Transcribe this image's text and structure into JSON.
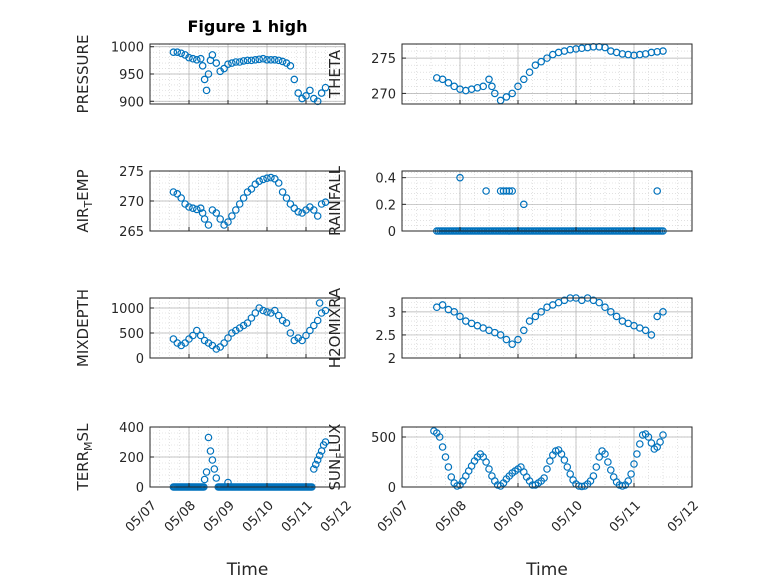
{
  "figure": {
    "title": "Figure 1 high",
    "xlabel": "Time",
    "colors": {
      "marker": "#0072BD",
      "axis": "#262626",
      "grid": "#cfcfcf",
      "background": "#ffffff"
    }
  },
  "chart_data": [
    {
      "id": "pressure",
      "type": "scatter",
      "ylabel": "PRESSURE",
      "ylim": [
        895,
        1005
      ],
      "yticks": [
        900,
        950,
        1000
      ],
      "xlim": [
        "05/07",
        "05/12"
      ],
      "xticks": [
        "05/07",
        "05/08",
        "05/09",
        "05/10",
        "05/11",
        "05/12"
      ],
      "grid": "major+minor",
      "marker": "open-circle",
      "x": [
        7.6,
        7.7,
        7.8,
        7.9,
        8.0,
        8.1,
        8.2,
        8.3,
        8.35,
        8.4,
        8.45,
        8.5,
        8.55,
        8.6,
        8.7,
        8.8,
        8.9,
        9.0,
        9.1,
        9.2,
        9.3,
        9.4,
        9.5,
        9.6,
        9.7,
        9.8,
        9.9,
        10.0,
        10.1,
        10.2,
        10.3,
        10.4,
        10.5,
        10.6,
        10.7,
        10.8,
        10.9,
        11.0,
        11.1,
        11.2,
        11.3,
        11.4,
        11.5
      ],
      "y": [
        990,
        990,
        988,
        985,
        980,
        978,
        976,
        978,
        965,
        940,
        920,
        950,
        975,
        985,
        970,
        955,
        960,
        968,
        970,
        972,
        972,
        974,
        975,
        975,
        976,
        977,
        978,
        976,
        976,
        976,
        975,
        973,
        970,
        965,
        940,
        915,
        905,
        910,
        920,
        905,
        900,
        915,
        925
      ]
    },
    {
      "id": "theta",
      "type": "scatter",
      "ylabel": "THETA",
      "ylim": [
        268.5,
        277
      ],
      "yticks": [
        270,
        275
      ],
      "xlim": [
        "05/07",
        "05/12"
      ],
      "xticks": [
        "05/07",
        "05/08",
        "05/09",
        "05/10",
        "05/11",
        "05/12"
      ],
      "grid": "major+minor",
      "marker": "open-circle",
      "x": [
        7.6,
        7.7,
        7.8,
        7.9,
        8.0,
        8.1,
        8.2,
        8.3,
        8.4,
        8.5,
        8.55,
        8.6,
        8.7,
        8.8,
        8.9,
        9.0,
        9.1,
        9.2,
        9.3,
        9.4,
        9.5,
        9.6,
        9.7,
        9.8,
        9.9,
        10.0,
        10.1,
        10.2,
        10.3,
        10.4,
        10.5,
        10.6,
        10.7,
        10.8,
        10.9,
        11.0,
        11.1,
        11.2,
        11.3,
        11.4,
        11.5
      ],
      "y": [
        272.2,
        272.0,
        271.5,
        271.0,
        270.6,
        270.4,
        270.6,
        270.8,
        271.0,
        272.0,
        271.0,
        270.0,
        269.0,
        269.5,
        270.0,
        271.0,
        272.0,
        273.0,
        274.0,
        274.5,
        275.0,
        275.5,
        275.8,
        276.0,
        276.2,
        276.3,
        276.4,
        276.5,
        276.6,
        276.6,
        276.5,
        276.0,
        275.8,
        275.6,
        275.5,
        275.4,
        275.5,
        275.6,
        275.8,
        275.9,
        276.0
      ]
    },
    {
      "id": "air_temp",
      "type": "scatter",
      "ylabel": "AIR_TEMP",
      "ylim": [
        265,
        275
      ],
      "yticks": [
        265,
        270,
        275
      ],
      "xlim": [
        "05/07",
        "05/12"
      ],
      "xticks": [
        "05/07",
        "05/08",
        "05/09",
        "05/10",
        "05/11",
        "05/12"
      ],
      "grid": "major+minor",
      "marker": "open-circle",
      "x": [
        7.6,
        7.7,
        7.8,
        7.9,
        8.0,
        8.1,
        8.2,
        8.3,
        8.35,
        8.4,
        8.5,
        8.6,
        8.7,
        8.8,
        8.9,
        9.0,
        9.1,
        9.2,
        9.3,
        9.4,
        9.5,
        9.6,
        9.7,
        9.8,
        9.9,
        10.0,
        10.1,
        10.2,
        10.3,
        10.4,
        10.5,
        10.6,
        10.7,
        10.8,
        10.9,
        11.0,
        11.1,
        11.2,
        11.3,
        11.4,
        11.5
      ],
      "y": [
        271.5,
        271.2,
        270.5,
        269.5,
        269.0,
        268.8,
        268.6,
        268.8,
        268.0,
        267.0,
        266.0,
        268.5,
        268.0,
        267.0,
        266.0,
        266.5,
        267.5,
        268.5,
        269.5,
        270.5,
        271.5,
        272.0,
        272.8,
        273.3,
        273.6,
        273.8,
        273.9,
        273.7,
        273.0,
        271.5,
        270.5,
        269.5,
        268.8,
        268.2,
        268.0,
        268.5,
        269.0,
        268.5,
        267.5,
        269.5,
        269.8
      ]
    },
    {
      "id": "rainfall",
      "type": "scatter",
      "ylabel": "RAINFALL",
      "ylim": [
        0,
        0.45
      ],
      "yticks": [
        0,
        0.2,
        0.4
      ],
      "xlim": [
        "05/07",
        "05/12"
      ],
      "xticks": [
        "05/07",
        "05/08",
        "05/09",
        "05/10",
        "05/11",
        "05/12"
      ],
      "grid": "major+minor",
      "marker": "open-circle",
      "x": [
        8.0,
        8.45,
        8.7,
        8.75,
        8.8,
        8.85,
        8.9,
        9.1,
        11.4
      ],
      "y": [
        0.4,
        0.3,
        0.3,
        0.3,
        0.3,
        0.3,
        0.3,
        0.2,
        0.3
      ],
      "zero_run": [
        7.6,
        11.5
      ]
    },
    {
      "id": "mixdepth",
      "type": "scatter",
      "ylabel": "MIXDEPTH",
      "ylim": [
        0,
        1200
      ],
      "yticks": [
        0,
        500,
        1000
      ],
      "xlim": [
        "05/07",
        "05/12"
      ],
      "xticks": [
        "05/07",
        "05/08",
        "05/09",
        "05/10",
        "05/11",
        "05/12"
      ],
      "grid": "major+minor",
      "marker": "open-circle",
      "x": [
        7.6,
        7.7,
        7.8,
        7.9,
        8.0,
        8.1,
        8.2,
        8.3,
        8.4,
        8.5,
        8.6,
        8.7,
        8.8,
        8.9,
        9.0,
        9.1,
        9.2,
        9.3,
        9.4,
        9.5,
        9.6,
        9.7,
        9.8,
        9.9,
        10.0,
        10.1,
        10.2,
        10.3,
        10.4,
        10.5,
        10.6,
        10.7,
        10.8,
        10.9,
        11.0,
        11.1,
        11.2,
        11.3,
        11.35,
        11.4,
        11.5
      ],
      "y": [
        380,
        300,
        250,
        300,
        380,
        450,
        550,
        450,
        350,
        300,
        250,
        180,
        220,
        300,
        400,
        500,
        550,
        600,
        650,
        700,
        800,
        900,
        1000,
        950,
        920,
        900,
        950,
        850,
        750,
        700,
        500,
        350,
        400,
        350,
        450,
        550,
        650,
        750,
        1100,
        900,
        950
      ]
    },
    {
      "id": "h2omixra",
      "type": "scatter",
      "ylabel": "H2OMIXRA",
      "ylim": [
        2,
        3.3
      ],
      "yticks": [
        2,
        2.5,
        3
      ],
      "xlim": [
        "05/07",
        "05/12"
      ],
      "xticks": [
        "05/07",
        "05/08",
        "05/09",
        "05/10",
        "05/11",
        "05/12"
      ],
      "grid": "major+minor",
      "marker": "open-circle",
      "x": [
        7.6,
        7.7,
        7.8,
        7.9,
        8.0,
        8.1,
        8.2,
        8.3,
        8.4,
        8.5,
        8.6,
        8.7,
        8.8,
        8.9,
        9.0,
        9.1,
        9.2,
        9.3,
        9.4,
        9.5,
        9.6,
        9.7,
        9.8,
        9.9,
        10.0,
        10.1,
        10.2,
        10.3,
        10.4,
        10.5,
        10.6,
        10.7,
        10.8,
        10.9,
        11.0,
        11.1,
        11.2,
        11.3,
        11.4,
        11.5
      ],
      "y": [
        3.1,
        3.15,
        3.05,
        3.0,
        2.9,
        2.8,
        2.75,
        2.7,
        2.65,
        2.6,
        2.55,
        2.5,
        2.4,
        2.3,
        2.4,
        2.6,
        2.8,
        2.9,
        3.0,
        3.1,
        3.15,
        3.2,
        3.25,
        3.3,
        3.3,
        3.25,
        3.3,
        3.25,
        3.2,
        3.1,
        3.0,
        2.9,
        2.8,
        2.75,
        2.7,
        2.65,
        2.6,
        2.5,
        2.9,
        3.0
      ]
    },
    {
      "id": "terr_msl",
      "type": "scatter",
      "ylabel": "TERR_MSL",
      "ylim": [
        0,
        400
      ],
      "yticks": [
        0,
        200,
        400
      ],
      "xlim": [
        "05/07",
        "05/12"
      ],
      "xticks": [
        "05/07",
        "05/08",
        "05/09",
        "05/10",
        "05/11",
        "05/12"
      ],
      "grid": "major+minor",
      "marker": "open-circle",
      "x": [
        8.4,
        8.45,
        8.5,
        8.55,
        8.6,
        8.65,
        8.7,
        9.0,
        11.2,
        11.25,
        11.3,
        11.35,
        11.4,
        11.45,
        11.5
      ],
      "y": [
        50,
        100,
        330,
        240,
        180,
        120,
        60,
        30,
        120,
        150,
        180,
        210,
        240,
        280,
        300
      ],
      "zero_runs": [
        [
          7.6,
          8.4
        ],
        [
          8.75,
          11.15
        ]
      ]
    },
    {
      "id": "sun_flux",
      "type": "scatter",
      "ylabel": "SUN_FLUX",
      "ylim": [
        0,
        600
      ],
      "yticks": [
        0,
        500
      ],
      "xlim": [
        "05/07",
        "05/12"
      ],
      "xticks": [
        "05/07",
        "05/08",
        "05/09",
        "05/10",
        "05/11",
        "05/12"
      ],
      "grid": "major+minor",
      "marker": "open-circle",
      "x": [
        7.55,
        7.6,
        7.65,
        7.7,
        7.75,
        7.8,
        7.85,
        7.9,
        7.95,
        8.0,
        8.05,
        8.1,
        8.15,
        8.2,
        8.25,
        8.3,
        8.35,
        8.4,
        8.45,
        8.5,
        8.55,
        8.6,
        8.65,
        8.7,
        8.75,
        8.8,
        8.85,
        8.9,
        8.95,
        9.0,
        9.05,
        9.1,
        9.15,
        9.2,
        9.25,
        9.3,
        9.35,
        9.4,
        9.45,
        9.5,
        9.55,
        9.6,
        9.65,
        9.7,
        9.75,
        9.8,
        9.85,
        9.9,
        9.95,
        10.0,
        10.05,
        10.1,
        10.15,
        10.2,
        10.25,
        10.3,
        10.35,
        10.4,
        10.45,
        10.5,
        10.55,
        10.6,
        10.65,
        10.7,
        10.75,
        10.8,
        10.85,
        10.9,
        10.95,
        11.0,
        11.05,
        11.1,
        11.15,
        11.2,
        11.25,
        11.3,
        11.35,
        11.4,
        11.45,
        11.5
      ],
      "y": [
        560,
        540,
        500,
        400,
        300,
        200,
        100,
        40,
        10,
        20,
        60,
        110,
        160,
        210,
        260,
        300,
        330,
        300,
        250,
        180,
        110,
        60,
        20,
        10,
        40,
        80,
        110,
        140,
        160,
        180,
        200,
        150,
        100,
        60,
        20,
        20,
        40,
        60,
        90,
        180,
        260,
        320,
        360,
        370,
        330,
        270,
        200,
        130,
        70,
        30,
        10,
        5,
        10,
        30,
        60,
        110,
        200,
        300,
        360,
        330,
        250,
        170,
        100,
        50,
        20,
        10,
        20,
        60,
        130,
        230,
        330,
        430,
        520,
        530,
        500,
        440,
        380,
        400,
        450,
        520
      ]
    }
  ]
}
